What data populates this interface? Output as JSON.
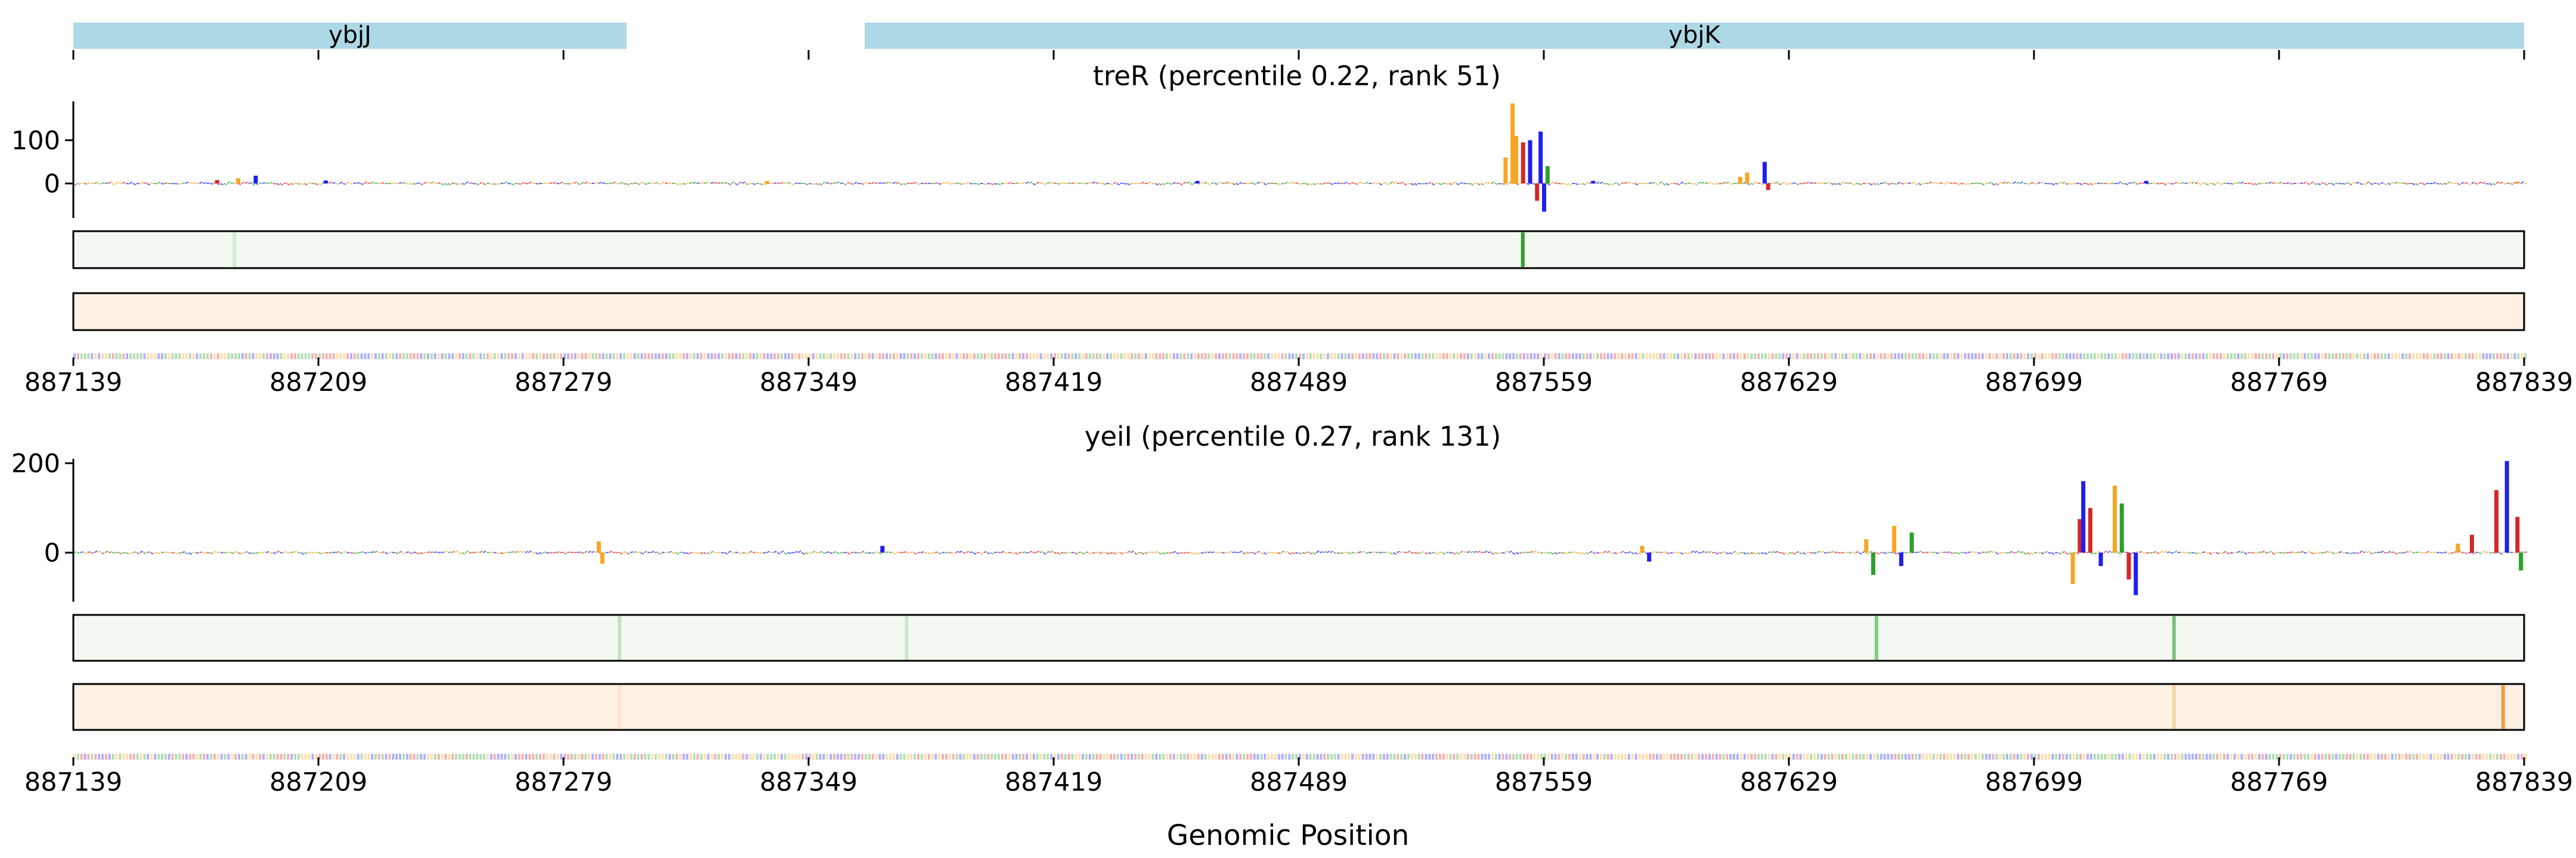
{
  "genes": [
    {
      "name": "ybjJ",
      "start": 887139,
      "end": 887297
    },
    {
      "name": "ybjK",
      "start": 887365,
      "end": 887839
    }
  ],
  "gene_color": "#add8e6",
  "colors": {
    "A": "#2ca02c",
    "C": "#1f1ff0",
    "G": "#f5a623",
    "T": "#d62728",
    "track_green": "#2ca02c",
    "track_green_bg": "#f3f9f1",
    "track_orange": "#f39c40",
    "track_orange_bg": "#fdf1e4"
  },
  "xaxis": {
    "label": "Genomic Position",
    "ticks": [
      "887139",
      "887209",
      "887279",
      "887349",
      "887419",
      "887489",
      "887559",
      "887629",
      "887699",
      "887769",
      "887839"
    ],
    "range": [
      887139,
      887839
    ]
  },
  "chart_data": [
    {
      "type": "bar",
      "title": "treR (percentile 0.22, rank 51)",
      "ytick_labels": [
        "100",
        "0"
      ],
      "yticks": [
        100,
        0
      ],
      "ylim": [
        -80,
        190
      ],
      "xlim": [
        887139,
        887839
      ],
      "peaks": [
        {
          "x": 887180,
          "value": 8,
          "base": "T"
        },
        {
          "x": 887186,
          "value": 12,
          "base": "G"
        },
        {
          "x": 887191,
          "value": 18,
          "base": "C"
        },
        {
          "x": 887211,
          "value": 7,
          "base": "C"
        },
        {
          "x": 887337,
          "value": 6,
          "base": "G"
        },
        {
          "x": 887460,
          "value": 6,
          "base": "C"
        },
        {
          "x": 887548,
          "value": 60,
          "base": "G"
        },
        {
          "x": 887550,
          "value": 185,
          "base": "G"
        },
        {
          "x": 887551,
          "value": 110,
          "base": "G"
        },
        {
          "x": 887553,
          "value": 95,
          "base": "T"
        },
        {
          "x": 887555,
          "value": 100,
          "base": "C"
        },
        {
          "x": 887557,
          "value": -40,
          "base": "T"
        },
        {
          "x": 887558,
          "value": 120,
          "base": "C"
        },
        {
          "x": 887559,
          "value": -65,
          "base": "C"
        },
        {
          "x": 887560,
          "value": 40,
          "base": "A"
        },
        {
          "x": 887573,
          "value": 6,
          "base": "C"
        },
        {
          "x": 887615,
          "value": 15,
          "base": "G"
        },
        {
          "x": 887617,
          "value": 25,
          "base": "G"
        },
        {
          "x": 887622,
          "value": 50,
          "base": "C"
        },
        {
          "x": 887623,
          "value": -15,
          "base": "T"
        },
        {
          "x": 887731,
          "value": 6,
          "base": "C"
        },
        {
          "x": 887837,
          "value": 4,
          "base": "G"
        }
      ],
      "green_track": [
        {
          "x": 887553,
          "intensity": 1.0
        },
        {
          "x": 887185,
          "intensity": 0.15
        }
      ],
      "orange_track": []
    },
    {
      "type": "bar",
      "title": "yeiI (percentile 0.27, rank 131)",
      "ytick_labels": [
        "200",
        "0"
      ],
      "yticks": [
        200,
        0
      ],
      "ylim": [
        -110,
        210
      ],
      "xlim": [
        887139,
        887839
      ],
      "peaks": [
        {
          "x": 887289,
          "value": 25,
          "base": "G"
        },
        {
          "x": 887290,
          "value": -25,
          "base": "G"
        },
        {
          "x": 887370,
          "value": 15,
          "base": "C"
        },
        {
          "x": 887587,
          "value": 15,
          "base": "G"
        },
        {
          "x": 887589,
          "value": -20,
          "base": "C"
        },
        {
          "x": 887651,
          "value": 30,
          "base": "G"
        },
        {
          "x": 887653,
          "value": -50,
          "base": "A"
        },
        {
          "x": 887659,
          "value": 60,
          "base": "G"
        },
        {
          "x": 887661,
          "value": -30,
          "base": "C"
        },
        {
          "x": 887664,
          "value": 45,
          "base": "A"
        },
        {
          "x": 887710,
          "value": -70,
          "base": "G"
        },
        {
          "x": 887712,
          "value": 75,
          "base": "T"
        },
        {
          "x": 887713,
          "value": 160,
          "base": "C"
        },
        {
          "x": 887715,
          "value": 100,
          "base": "T"
        },
        {
          "x": 887718,
          "value": -30,
          "base": "C"
        },
        {
          "x": 887722,
          "value": 150,
          "base": "G"
        },
        {
          "x": 887724,
          "value": 110,
          "base": "A"
        },
        {
          "x": 887726,
          "value": -60,
          "base": "T"
        },
        {
          "x": 887728,
          "value": -95,
          "base": "C"
        },
        {
          "x": 887820,
          "value": 20,
          "base": "G"
        },
        {
          "x": 887824,
          "value": 40,
          "base": "T"
        },
        {
          "x": 887831,
          "value": 140,
          "base": "T"
        },
        {
          "x": 887834,
          "value": 205,
          "base": "C"
        },
        {
          "x": 887837,
          "value": 80,
          "base": "T"
        },
        {
          "x": 887838,
          "value": -40,
          "base": "A"
        }
      ],
      "green_track": [
        {
          "x": 887295,
          "intensity": 0.25
        },
        {
          "x": 887377,
          "intensity": 0.2
        },
        {
          "x": 887654,
          "intensity": 0.55
        },
        {
          "x": 887739,
          "intensity": 0.6
        }
      ],
      "orange_track": [
        {
          "x": 887739,
          "intensity": 0.35
        },
        {
          "x": 887833,
          "intensity": 1.0
        },
        {
          "x": 887295,
          "intensity": 0.15
        }
      ]
    }
  ]
}
